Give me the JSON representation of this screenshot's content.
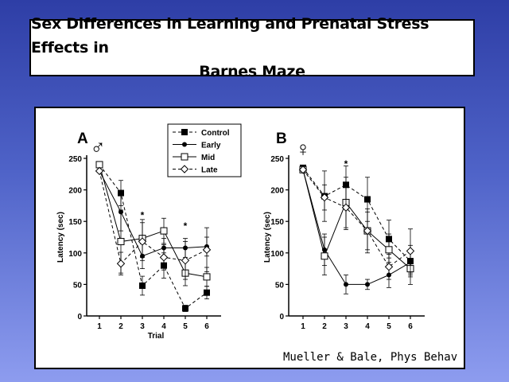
{
  "title": {
    "line1": "Sex Differences in Learning and Prenatal Stress Effects in",
    "line2": "Barnes Maze"
  },
  "citation": "Mueller & Bale, Phys Behav",
  "chart_data": [
    {
      "type": "line",
      "panel_label": "A",
      "sex_symbol": "♂",
      "xlabel": "Trial",
      "ylabel": "Latency (sec)",
      "x": [
        1,
        2,
        3,
        4,
        5,
        6
      ],
      "xticks": [
        "1",
        "2",
        "3",
        "4",
        "5",
        "6"
      ],
      "yticks": [
        "0",
        "50",
        "100",
        "150",
        "200",
        "250"
      ],
      "ylim": [
        0,
        250
      ],
      "significance_marks": [
        {
          "x": 3,
          "y": 162,
          "text": "*"
        },
        {
          "x": 5,
          "y": 145,
          "text": "*"
        }
      ],
      "series": [
        {
          "name": "Control",
          "marker": "filled-square",
          "dash": "4,3",
          "values": [
            240,
            195,
            48,
            80,
            12,
            37
          ],
          "errors": [
            0,
            20,
            15,
            20,
            5,
            10
          ]
        },
        {
          "name": "Early",
          "marker": "filled-circle",
          "dash": "",
          "values": [
            230,
            165,
            95,
            108,
            108,
            110
          ],
          "errors": [
            0,
            30,
            20,
            15,
            15,
            15
          ]
        },
        {
          "name": "Mid",
          "marker": "open-square",
          "dash": "",
          "values": [
            240,
            118,
            123,
            135,
            68,
            62
          ],
          "errors": [
            0,
            50,
            30,
            20,
            20,
            15
          ]
        },
        {
          "name": "Late",
          "marker": "open-diamond",
          "dash": "4,3",
          "values": [
            230,
            83,
            118,
            93,
            88,
            105
          ],
          "errors": [
            0,
            18,
            30,
            20,
            30,
            35
          ]
        }
      ],
      "legend": {
        "placement": "top-center",
        "entries": [
          "Control",
          "Early",
          "Mid",
          "Late"
        ]
      }
    },
    {
      "type": "line",
      "panel_label": "B",
      "sex_symbol": "♀",
      "xlabel": "",
      "ylabel": "Latency (sec)",
      "x": [
        1,
        2,
        3,
        4,
        5,
        6
      ],
      "xticks": [
        "1",
        "2",
        "3",
        "4",
        "5",
        "6"
      ],
      "yticks": [
        "0",
        "50",
        "100",
        "150",
        "200",
        "250"
      ],
      "ylim": [
        0,
        250
      ],
      "significance_marks": [
        {
          "x": 3,
          "y": 244,
          "text": "*"
        }
      ],
      "series": [
        {
          "name": "Control",
          "marker": "filled-square",
          "dash": "4,3",
          "values": [
            235,
            190,
            208,
            185,
            122,
            87
          ],
          "errors": [
            0,
            40,
            30,
            35,
            30,
            25
          ]
        },
        {
          "name": "Early",
          "marker": "filled-circle",
          "dash": "",
          "values": [
            232,
            105,
            50,
            50,
            65,
            85
          ],
          "errors": [
            0,
            25,
            15,
            8,
            20,
            20
          ]
        },
        {
          "name": "Mid",
          "marker": "open-square",
          "dash": "",
          "values": [
            232,
            95,
            180,
            135,
            105,
            75
          ],
          "errors": [
            0,
            30,
            40,
            35,
            25,
            25
          ]
        },
        {
          "name": "Late",
          "marker": "open-diamond",
          "dash": "4,3",
          "values": [
            232,
            188,
            172,
            135,
            78,
            103
          ],
          "errors": [
            0,
            20,
            35,
            30,
            20,
            35
          ]
        }
      ]
    }
  ]
}
